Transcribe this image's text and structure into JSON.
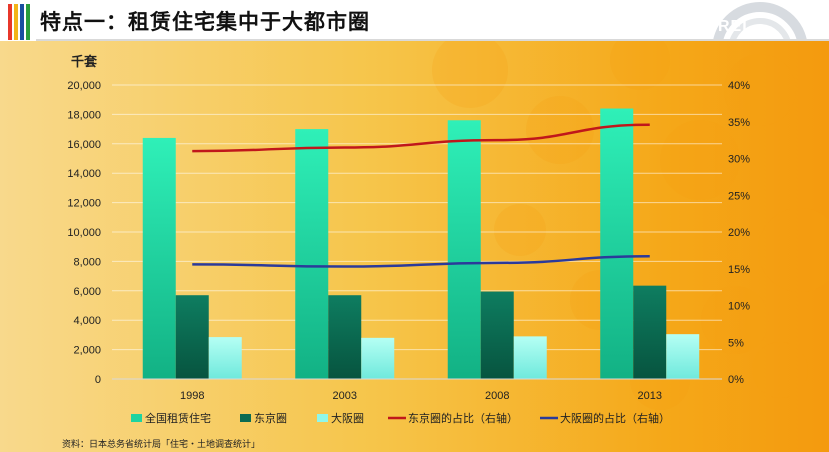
{
  "header": {
    "title": "特点一：租赁住宅集中于大都市圈",
    "logo_text": "REI",
    "stripe_colors": [
      "#e8372b",
      "#f3b419",
      "#1a4fa0",
      "#2a9d3c"
    ]
  },
  "source_note": "资料：日本总务省统计局「住宅・土地调查统计」",
  "chart_data": {
    "type": "bar",
    "unit_label": "千套",
    "categories": [
      "1998",
      "2003",
      "2008",
      "2013"
    ],
    "y_left": {
      "min": 0,
      "max": 20000,
      "step": 2000,
      "ticks": [
        "0",
        "2,000",
        "4,000",
        "6,000",
        "8,000",
        "10,000",
        "12,000",
        "14,000",
        "16,000",
        "18,000",
        "20,000"
      ]
    },
    "y_right": {
      "min": 0,
      "max": 40,
      "step": 5,
      "ticks": [
        "0%",
        "5%",
        "10%",
        "15%",
        "20%",
        "25%",
        "30%",
        "35%",
        "40%"
      ]
    },
    "series": [
      {
        "name": "全国租赁住宅",
        "kind": "bar",
        "color": "#1fd3a0",
        "values": [
          16400,
          17000,
          17600,
          18400
        ]
      },
      {
        "name": "东京圈",
        "kind": "bar",
        "color": "#0b6b52",
        "values": [
          5700,
          5700,
          5950,
          6350
        ]
      },
      {
        "name": "大阪圈",
        "kind": "bar",
        "color": "#8ff7ea",
        "values": [
          2850,
          2800,
          2900,
          3050
        ]
      },
      {
        "name": "东京圈的占比（右轴）",
        "kind": "line",
        "axis": "right",
        "color": "#c0171b",
        "values": [
          31,
          31.5,
          32.5,
          34.6
        ]
      },
      {
        "name": "大阪圈的占比（右轴）",
        "kind": "line",
        "axis": "right",
        "color": "#2b3a9a",
        "values": [
          15.6,
          15.3,
          15.8,
          16.7
        ]
      }
    ],
    "grid": true,
    "legend_position": "bottom"
  }
}
